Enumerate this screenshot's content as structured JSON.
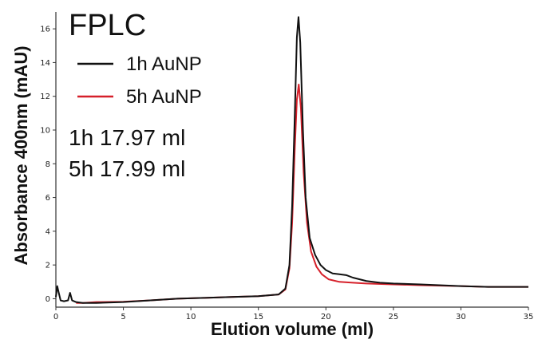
{
  "chart_data": {
    "type": "line",
    "title": "FPLC",
    "xlabel": "Elution volume (ml)",
    "ylabel": "Absorbance 400nm (mAU)",
    "xlim": [
      0,
      35
    ],
    "ylim": [
      -0.5,
      17
    ],
    "x_ticks": [
      0,
      5,
      10,
      15,
      20,
      25,
      30,
      35
    ],
    "y_ticks": [
      0,
      2,
      4,
      6,
      8,
      10,
      12,
      14,
      16
    ],
    "grid": false,
    "legend_position": "top-left",
    "annotations": [
      "1h 17.97 ml",
      "5h 17.99 ml"
    ],
    "series": [
      {
        "name": "1h AuNP",
        "color": "#111111",
        "points": [
          [
            0,
            0.1
          ],
          [
            0.1,
            0.75
          ],
          [
            0.2,
            0.4
          ],
          [
            0.35,
            -0.1
          ],
          [
            0.6,
            -0.15
          ],
          [
            0.9,
            -0.1
          ],
          [
            1.05,
            0.35
          ],
          [
            1.2,
            -0.1
          ],
          [
            1.5,
            -0.2
          ],
          [
            2,
            -0.25
          ],
          [
            3,
            -0.25
          ],
          [
            5,
            -0.2
          ],
          [
            7,
            -0.1
          ],
          [
            9,
            0.0
          ],
          [
            11,
            0.05
          ],
          [
            13,
            0.1
          ],
          [
            15,
            0.15
          ],
          [
            16.5,
            0.25
          ],
          [
            17.0,
            0.6
          ],
          [
            17.3,
            2.0
          ],
          [
            17.5,
            5.5
          ],
          [
            17.7,
            11.0
          ],
          [
            17.85,
            15.5
          ],
          [
            17.97,
            16.7
          ],
          [
            18.1,
            15.2
          ],
          [
            18.3,
            10.0
          ],
          [
            18.5,
            6.0
          ],
          [
            18.8,
            3.6
          ],
          [
            19.2,
            2.6
          ],
          [
            19.6,
            2.0
          ],
          [
            20.0,
            1.7
          ],
          [
            20.5,
            1.5
          ],
          [
            21.0,
            1.45
          ],
          [
            21.5,
            1.4
          ],
          [
            22,
            1.25
          ],
          [
            23,
            1.05
          ],
          [
            24,
            0.95
          ],
          [
            25,
            0.9
          ],
          [
            27,
            0.85
          ],
          [
            30,
            0.75
          ],
          [
            32,
            0.7
          ],
          [
            35,
            0.7
          ]
        ]
      },
      {
        "name": "5h AuNP",
        "color": "#d6202a",
        "points": [
          [
            1.5,
            -0.25
          ],
          [
            2,
            -0.25
          ],
          [
            3,
            -0.2
          ],
          [
            5,
            -0.18
          ],
          [
            7,
            -0.1
          ],
          [
            9,
            0.0
          ],
          [
            11,
            0.05
          ],
          [
            13,
            0.1
          ],
          [
            15,
            0.15
          ],
          [
            16.5,
            0.25
          ],
          [
            17.0,
            0.55
          ],
          [
            17.3,
            1.8
          ],
          [
            17.5,
            4.5
          ],
          [
            17.7,
            9.0
          ],
          [
            17.85,
            11.8
          ],
          [
            17.99,
            12.7
          ],
          [
            18.15,
            11.3
          ],
          [
            18.35,
            7.5
          ],
          [
            18.6,
            4.5
          ],
          [
            18.9,
            2.8
          ],
          [
            19.3,
            1.9
          ],
          [
            19.7,
            1.45
          ],
          [
            20.2,
            1.15
          ],
          [
            21,
            1.0
          ],
          [
            22,
            0.95
          ],
          [
            23,
            0.9
          ],
          [
            25,
            0.85
          ],
          [
            27,
            0.8
          ],
          [
            30,
            0.75
          ],
          [
            32,
            0.7
          ],
          [
            35,
            0.7
          ]
        ]
      }
    ]
  }
}
